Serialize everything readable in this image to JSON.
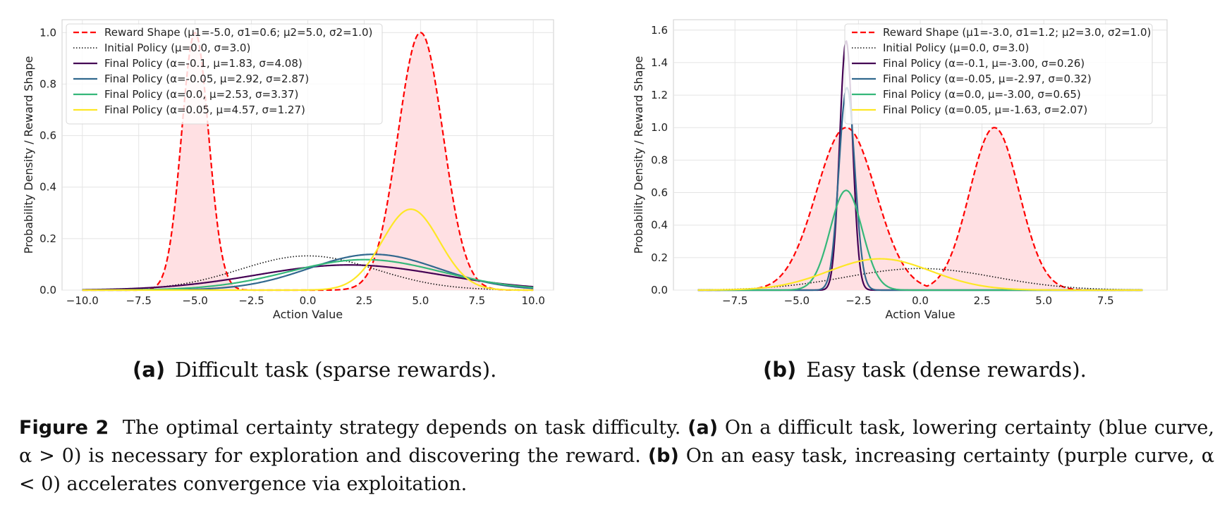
{
  "chart_data": [
    {
      "type": "line",
      "xlabel": "Action Value",
      "ylabel": "Probability Density / Reward Shape",
      "xlim": [
        -10.0,
        10.0
      ],
      "ylim": [
        0.0,
        1.0
      ],
      "xticks": [
        "−10.0",
        "−7.5",
        "−5.0",
        "−2.5",
        "0.0",
        "2.5",
        "5.0",
        "7.5",
        "10.0"
      ],
      "yticks": [
        "0.0",
        "0.2",
        "0.4",
        "0.6",
        "0.8",
        "1.0"
      ],
      "grid": true,
      "legend_position": "top-left",
      "series": [
        {
          "name": "Reward Shape (μ1=-5.0, σ1=0.6; μ2=5.0, σ2=1.0)",
          "kind": "reward",
          "mu1": -5.0,
          "sigma1": 0.6,
          "mu2": 5.0,
          "sigma2": 1.0,
          "color": "#ff0000",
          "style": "dashed",
          "fill": "#ffe0e3"
        },
        {
          "name": "Initial Policy (μ=0.0, σ=3.0)",
          "kind": "normal",
          "mu": 0.0,
          "sigma": 3.0,
          "color": "#111111",
          "style": "dotted"
        },
        {
          "name": "Final Policy (α=-0.1, μ=1.83, σ=4.08)",
          "kind": "normal",
          "mu": 1.83,
          "sigma": 4.08,
          "color": "#440154",
          "style": "solid"
        },
        {
          "name": "Final Policy (α=-0.05, μ=2.92, σ=2.87)",
          "kind": "normal",
          "mu": 2.92,
          "sigma": 2.87,
          "color": "#31688e",
          "style": "solid"
        },
        {
          "name": "Final Policy (α=0.0, μ=2.53, σ=3.37)",
          "kind": "normal",
          "mu": 2.53,
          "sigma": 3.37,
          "color": "#35b779",
          "style": "solid"
        },
        {
          "name": "Final Policy (α=0.05, μ=4.57, σ=1.27)",
          "kind": "normal",
          "mu": 4.57,
          "sigma": 1.27,
          "color": "#fde725",
          "style": "solid"
        }
      ]
    },
    {
      "type": "line",
      "xlabel": "Action Value",
      "ylabel": "Probability Density / Reward Shape",
      "xlim": [
        -9.0,
        9.0
      ],
      "ylim": [
        0.0,
        1.6
      ],
      "xticks": [
        "−7.5",
        "−5.0",
        "−2.5",
        "0.0",
        "2.5",
        "5.0",
        "7.5"
      ],
      "yticks": [
        "0.0",
        "0.2",
        "0.4",
        "0.6",
        "0.8",
        "1.0",
        "1.2",
        "1.4",
        "1.6"
      ],
      "grid": true,
      "legend_position": "top-right",
      "series": [
        {
          "name": "Reward Shape (μ1=-3.0, σ1=1.2; μ2=3.0, σ2=1.0)",
          "kind": "reward",
          "mu1": -3.0,
          "sigma1": 1.2,
          "mu2": 3.0,
          "sigma2": 1.0,
          "color": "#ff0000",
          "style": "dashed",
          "fill": "#ffe0e3"
        },
        {
          "name": "Initial Policy (μ=0.0, σ=3.0)",
          "kind": "normal",
          "mu": 0.0,
          "sigma": 3.0,
          "color": "#111111",
          "style": "dotted"
        },
        {
          "name": "Final Policy (α=-0.1, μ=-3.00, σ=0.26)",
          "kind": "normal",
          "mu": -3.0,
          "sigma": 0.26,
          "color": "#440154",
          "style": "solid"
        },
        {
          "name": "Final Policy (α=-0.05, μ=-2.97, σ=0.32)",
          "kind": "normal",
          "mu": -2.97,
          "sigma": 0.32,
          "color": "#31688e",
          "style": "solid"
        },
        {
          "name": "Final Policy (α=0.0, μ=-3.00, σ=0.65)",
          "kind": "normal",
          "mu": -3.0,
          "sigma": 0.65,
          "color": "#35b779",
          "style": "solid"
        },
        {
          "name": "Final Policy (α=0.05, μ=-1.63, σ=2.07)",
          "kind": "normal",
          "mu": -1.63,
          "sigma": 2.07,
          "color": "#fde725",
          "style": "solid"
        }
      ]
    }
  ],
  "subcaptions": [
    {
      "tag": "(a)",
      "text": "Difficult task (sparse rewards)."
    },
    {
      "tag": "(b)",
      "text": "Easy task (dense rewards)."
    }
  ],
  "caption": {
    "label": "Figure 2",
    "part1": "The optimal certainty strategy depends on task difficulty.",
    "tag_a": "(a)",
    "part2": "On a difficult task, lowering certainty (blue curve, α > 0) is necessary for exploration and discovering the reward.",
    "tag_b": "(b)",
    "part3": "On an easy task, increasing certainty (purple curve, α < 0) accelerates convergence via exploitation."
  }
}
